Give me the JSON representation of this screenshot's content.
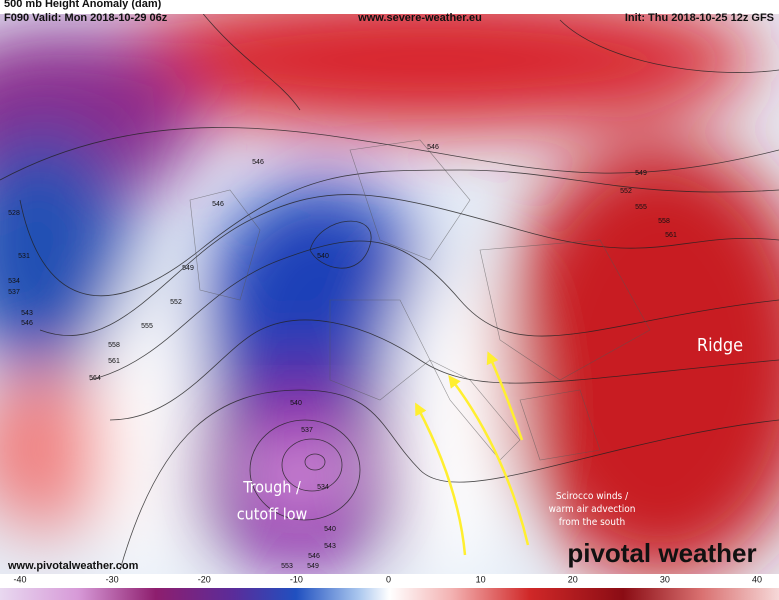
{
  "header": {
    "title": "500 mb Height Anomaly (dam)",
    "valid": "F090 Valid: Mon 2018-10-29 06z",
    "site": "www.severe-weather.eu",
    "init": "Init: Thu 2018-10-25 12z GFS"
  },
  "annotations": {
    "ridge": "Ridge",
    "trough": [
      "Trough /",
      "cutoff low"
    ],
    "scirocco": [
      "Scirocco winds /",
      "warm air advection",
      "from the south"
    ]
  },
  "footer": {
    "watermark": "www.pivotalweather.com",
    "brand": "pivotal weather"
  },
  "contour_labels": [
    546,
    546,
    549,
    552,
    555,
    558,
    561,
    528,
    531,
    534,
    537,
    543,
    546,
    549,
    552,
    555,
    558,
    561,
    564,
    540,
    546,
    540,
    537,
    534,
    540,
    543,
    546,
    549,
    553
  ],
  "colorbar": {
    "ticks": [
      -40,
      -30,
      -20,
      -10,
      0,
      10,
      20,
      30,
      40
    ]
  }
}
